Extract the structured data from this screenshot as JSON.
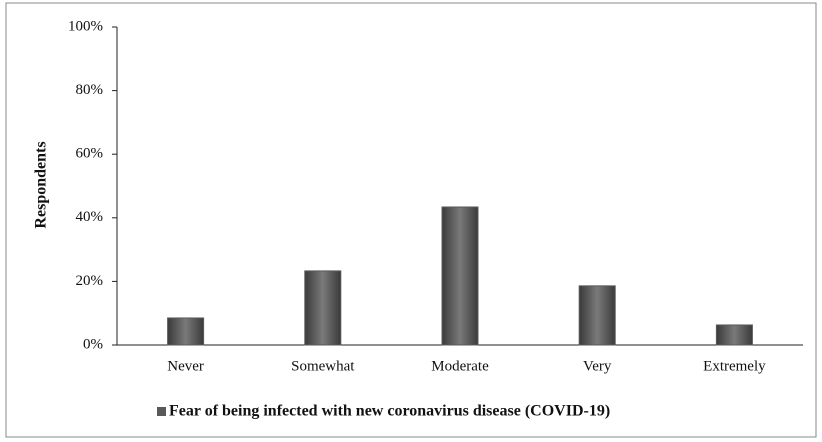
{
  "chart_data": {
    "type": "bar",
    "categories": [
      "Never",
      "Somewhat",
      "Moderate",
      "Very",
      "Extremely"
    ],
    "series": [
      {
        "name": "Fear of being infected with new coronavirus disease (COVID-19)",
        "color": "#595959",
        "values": [
          8.5,
          23.3,
          43.4,
          18.6,
          6.3
        ]
      }
    ],
    "y_label": "Respondents",
    "ylim": [
      0,
      100
    ],
    "yticks": [
      {
        "value": 0,
        "label": "0%"
      },
      {
        "value": 20,
        "label": "20%"
      },
      {
        "value": 40,
        "label": "40%"
      },
      {
        "value": 60,
        "label": "60%"
      },
      {
        "value": 80,
        "label": "80%"
      },
      {
        "value": 100,
        "label": "100%"
      }
    ],
    "grid": false,
    "legend": "bottom"
  }
}
